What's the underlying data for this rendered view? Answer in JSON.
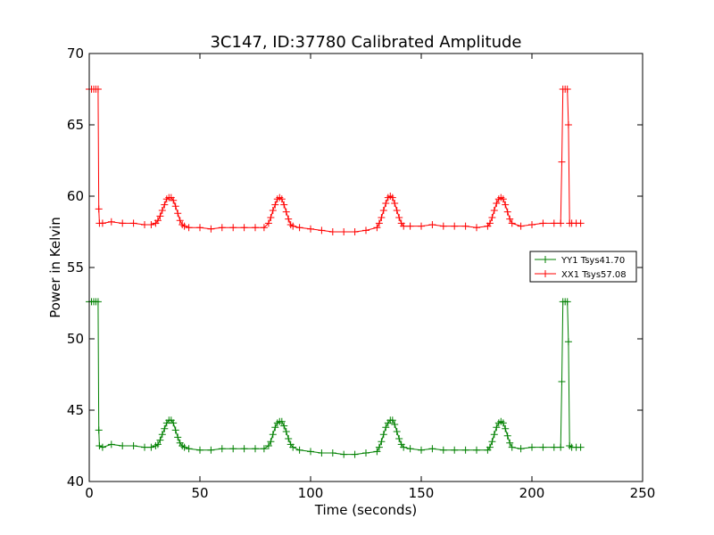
{
  "chart_data": {
    "type": "line",
    "title": "3C147, ID:37780 Calibrated Amplitude",
    "xlabel": "Time (seconds)",
    "ylabel": "Power in Kelvin",
    "xlim": [
      0,
      250
    ],
    "ylim": [
      40,
      70
    ],
    "xticks": [
      0,
      50,
      100,
      150,
      200,
      250
    ],
    "yticks": [
      40,
      45,
      50,
      55,
      60,
      65,
      70
    ],
    "grid": false,
    "legend_position": "right",
    "marker": "+",
    "series": [
      {
        "name": "YY1 Tsys41.70",
        "color": "#008000",
        "points": [
          [
            0,
            52.6
          ],
          [
            1,
            52.6
          ],
          [
            2,
            52.6
          ],
          [
            3,
            52.6
          ],
          [
            4,
            52.6
          ],
          [
            4.3,
            43.6
          ],
          [
            4.6,
            42.5
          ],
          [
            6,
            42.4
          ],
          [
            10,
            42.6
          ],
          [
            15,
            42.5
          ],
          [
            20,
            42.5
          ],
          [
            25,
            42.4
          ],
          [
            28,
            42.4
          ],
          [
            30,
            42.5
          ],
          [
            31,
            42.6
          ],
          [
            32,
            42.9
          ],
          [
            33,
            43.3
          ],
          [
            34,
            43.7
          ],
          [
            35,
            44.1
          ],
          [
            36,
            44.3
          ],
          [
            37,
            44.3
          ],
          [
            38,
            44.1
          ],
          [
            39,
            43.6
          ],
          [
            40,
            43.1
          ],
          [
            41,
            42.7
          ],
          [
            42,
            42.5
          ],
          [
            43,
            42.4
          ],
          [
            45,
            42.3
          ],
          [
            50,
            42.2
          ],
          [
            55,
            42.2
          ],
          [
            60,
            42.3
          ],
          [
            65,
            42.3
          ],
          [
            70,
            42.3
          ],
          [
            75,
            42.3
          ],
          [
            79,
            42.3
          ],
          [
            81,
            42.5
          ],
          [
            82,
            42.8
          ],
          [
            83,
            43.3
          ],
          [
            84,
            43.8
          ],
          [
            85,
            44.1
          ],
          [
            86,
            44.2
          ],
          [
            87,
            44.2
          ],
          [
            88,
            43.9
          ],
          [
            89,
            43.5
          ],
          [
            90,
            43.0
          ],
          [
            91,
            42.6
          ],
          [
            92,
            42.4
          ],
          [
            95,
            42.2
          ],
          [
            100,
            42.1
          ],
          [
            105,
            42.0
          ],
          [
            110,
            42.0
          ],
          [
            115,
            41.9
          ],
          [
            120,
            41.9
          ],
          [
            125,
            42.0
          ],
          [
            130,
            42.1
          ],
          [
            131,
            42.4
          ],
          [
            132,
            42.8
          ],
          [
            133,
            43.3
          ],
          [
            134,
            43.8
          ],
          [
            135,
            44.1
          ],
          [
            136,
            44.3
          ],
          [
            137,
            44.3
          ],
          [
            138,
            44.0
          ],
          [
            139,
            43.5
          ],
          [
            140,
            43.0
          ],
          [
            141,
            42.6
          ],
          [
            142,
            42.4
          ],
          [
            145,
            42.3
          ],
          [
            150,
            42.2
          ],
          [
            155,
            42.3
          ],
          [
            160,
            42.2
          ],
          [
            165,
            42.2
          ],
          [
            170,
            42.2
          ],
          [
            175,
            42.2
          ],
          [
            180,
            42.2
          ],
          [
            181,
            42.4
          ],
          [
            182,
            42.8
          ],
          [
            183,
            43.3
          ],
          [
            184,
            43.8
          ],
          [
            185,
            44.1
          ],
          [
            186,
            44.2
          ],
          [
            187,
            44.1
          ],
          [
            188,
            43.7
          ],
          [
            189,
            43.2
          ],
          [
            190,
            42.7
          ],
          [
            191,
            42.4
          ],
          [
            195,
            42.3
          ],
          [
            200,
            42.4
          ],
          [
            205,
            42.4
          ],
          [
            210,
            42.4
          ],
          [
            213,
            42.4
          ],
          [
            213.5,
            47.0
          ],
          [
            214,
            52.6
          ],
          [
            215,
            52.6
          ],
          [
            216,
            52.6
          ],
          [
            216.5,
            49.8
          ],
          [
            217,
            42.5
          ],
          [
            218,
            42.4
          ],
          [
            220,
            42.4
          ],
          [
            222,
            42.4
          ]
        ]
      },
      {
        "name": "XX1 Tsys57.08",
        "color": "#ff0000",
        "points": [
          [
            0,
            67.5
          ],
          [
            1,
            67.5
          ],
          [
            2,
            67.5
          ],
          [
            3,
            67.5
          ],
          [
            4,
            67.5
          ],
          [
            4.3,
            59.1
          ],
          [
            4.6,
            58.1
          ],
          [
            6,
            58.1
          ],
          [
            10,
            58.2
          ],
          [
            15,
            58.1
          ],
          [
            20,
            58.1
          ],
          [
            25,
            58.0
          ],
          [
            28,
            58.0
          ],
          [
            30,
            58.1
          ],
          [
            31,
            58.3
          ],
          [
            32,
            58.6
          ],
          [
            33,
            59.0
          ],
          [
            34,
            59.4
          ],
          [
            35,
            59.8
          ],
          [
            36,
            59.9
          ],
          [
            37,
            59.9
          ],
          [
            38,
            59.7
          ],
          [
            39,
            59.3
          ],
          [
            40,
            58.8
          ],
          [
            41,
            58.3
          ],
          [
            42,
            58.0
          ],
          [
            43,
            57.9
          ],
          [
            45,
            57.8
          ],
          [
            50,
            57.8
          ],
          [
            55,
            57.7
          ],
          [
            60,
            57.8
          ],
          [
            65,
            57.8
          ],
          [
            70,
            57.8
          ],
          [
            75,
            57.8
          ],
          [
            79,
            57.8
          ],
          [
            81,
            58.1
          ],
          [
            82,
            58.5
          ],
          [
            83,
            59.0
          ],
          [
            84,
            59.4
          ],
          [
            85,
            59.8
          ],
          [
            86,
            59.9
          ],
          [
            87,
            59.8
          ],
          [
            88,
            59.4
          ],
          [
            89,
            58.9
          ],
          [
            90,
            58.4
          ],
          [
            91,
            58.0
          ],
          [
            92,
            57.9
          ],
          [
            95,
            57.8
          ],
          [
            100,
            57.7
          ],
          [
            105,
            57.6
          ],
          [
            110,
            57.5
          ],
          [
            115,
            57.5
          ],
          [
            120,
            57.5
          ],
          [
            125,
            57.6
          ],
          [
            130,
            57.8
          ],
          [
            131,
            58.1
          ],
          [
            132,
            58.5
          ],
          [
            133,
            59.0
          ],
          [
            134,
            59.5
          ],
          [
            135,
            59.9
          ],
          [
            136,
            60.0
          ],
          [
            137,
            59.9
          ],
          [
            138,
            59.5
          ],
          [
            139,
            59.0
          ],
          [
            140,
            58.5
          ],
          [
            141,
            58.1
          ],
          [
            142,
            57.9
          ],
          [
            145,
            57.9
          ],
          [
            150,
            57.9
          ],
          [
            155,
            58.0
          ],
          [
            160,
            57.9
          ],
          [
            165,
            57.9
          ],
          [
            170,
            57.9
          ],
          [
            175,
            57.8
          ],
          [
            180,
            57.9
          ],
          [
            181,
            58.1
          ],
          [
            182,
            58.5
          ],
          [
            183,
            59.0
          ],
          [
            184,
            59.5
          ],
          [
            185,
            59.8
          ],
          [
            186,
            59.9
          ],
          [
            187,
            59.8
          ],
          [
            188,
            59.4
          ],
          [
            189,
            58.9
          ],
          [
            190,
            58.4
          ],
          [
            191,
            58.1
          ],
          [
            195,
            57.9
          ],
          [
            200,
            58.0
          ],
          [
            205,
            58.1
          ],
          [
            210,
            58.1
          ],
          [
            213,
            58.1
          ],
          [
            213.5,
            62.4
          ],
          [
            214,
            67.5
          ],
          [
            215,
            67.5
          ],
          [
            216,
            67.5
          ],
          [
            216.5,
            65.0
          ],
          [
            217,
            58.1
          ],
          [
            218,
            58.1
          ],
          [
            220,
            58.1
          ],
          [
            222,
            58.1
          ]
        ]
      }
    ]
  }
}
